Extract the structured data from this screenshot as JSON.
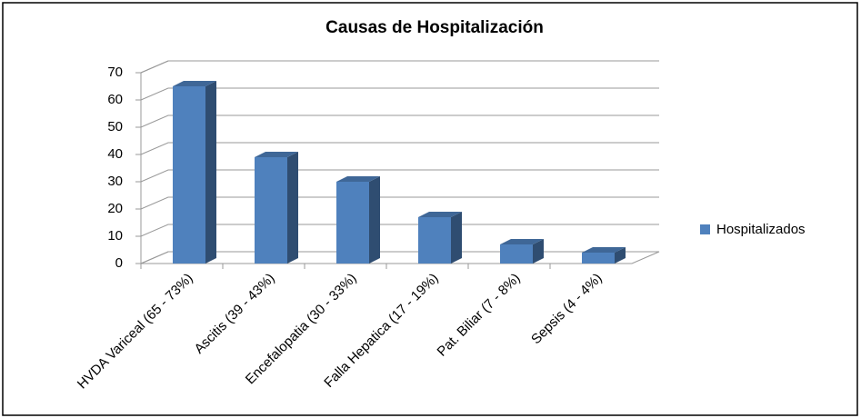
{
  "chart_data": {
    "type": "bar3d",
    "title": "Causas de Hospitalización",
    "categories": [
      "HVDA Variceal (65 - 73%)",
      "Ascitis (39 - 43%)",
      "Encefalopatia (30 - 33%)",
      "Falla Hepatica (17 - 19%)",
      "Pat. Biliar (7 - 8%)",
      "Sepsis (4 - 4%)"
    ],
    "series": [
      {
        "name": "Hospitalizados",
        "color": "#4f81bd",
        "values": [
          65,
          39,
          30,
          17,
          7,
          4
        ]
      }
    ],
    "ylim": [
      0,
      70
    ],
    "yticks": [
      0,
      10,
      20,
      30,
      40,
      50,
      60,
      70
    ],
    "grid": true,
    "legend": "right"
  }
}
